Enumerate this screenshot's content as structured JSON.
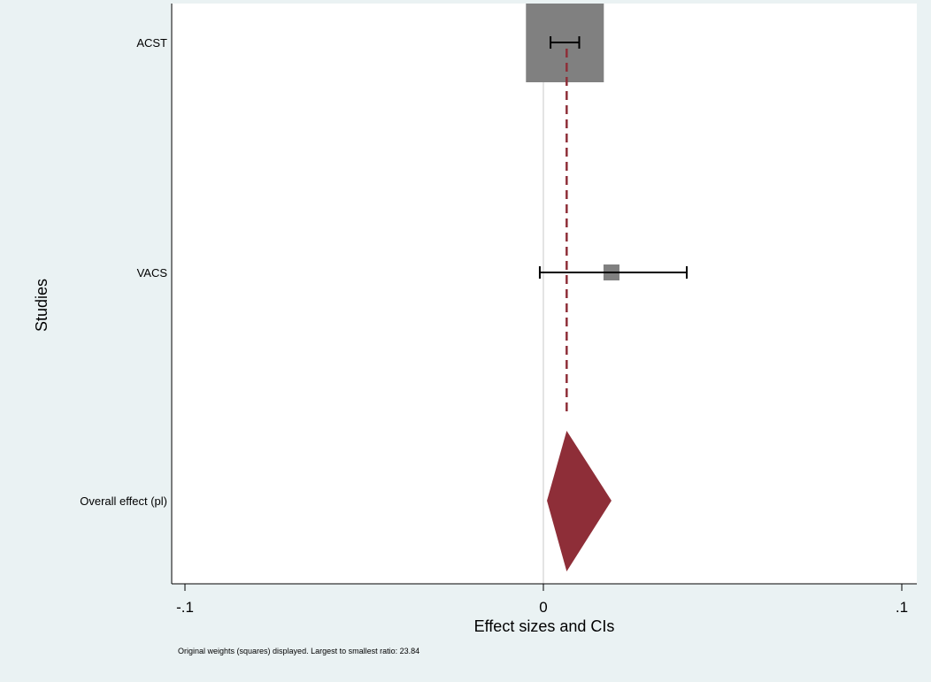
{
  "chart_data": {
    "type": "forest",
    "xlabel": "Effect sizes and CIs",
    "ylabel": "Studies",
    "xlim": [
      -0.105,
      0.105
    ],
    "xticks": [
      {
        "value": -0.1,
        "label": "-.1"
      },
      {
        "value": 0,
        "label": "0"
      },
      {
        "value": 0.1,
        "label": ".1"
      }
    ],
    "studies": [
      {
        "name": "ACST",
        "estimate": 0.006,
        "ci": [
          0.002,
          0.01
        ],
        "weight_box_relative": 1.0
      },
      {
        "name": "VACS",
        "estimate": 0.019,
        "ci": [
          -0.001,
          0.04
        ],
        "weight_box_relative": 0.205
      }
    ],
    "overall": {
      "name": "Overall effect (pl)",
      "estimate": 0.0065,
      "ci": [
        0.001,
        0.019
      ]
    },
    "note": "Original weights (squares) displayed. Largest to smallest ratio: 23.84",
    "colors": {
      "background": "#eaf2f3",
      "plot_area": "#ffffff",
      "box": "#808080",
      "overall": "#8e2e38",
      "null_line": "#dcdcdc",
      "ci": "#000000"
    }
  }
}
